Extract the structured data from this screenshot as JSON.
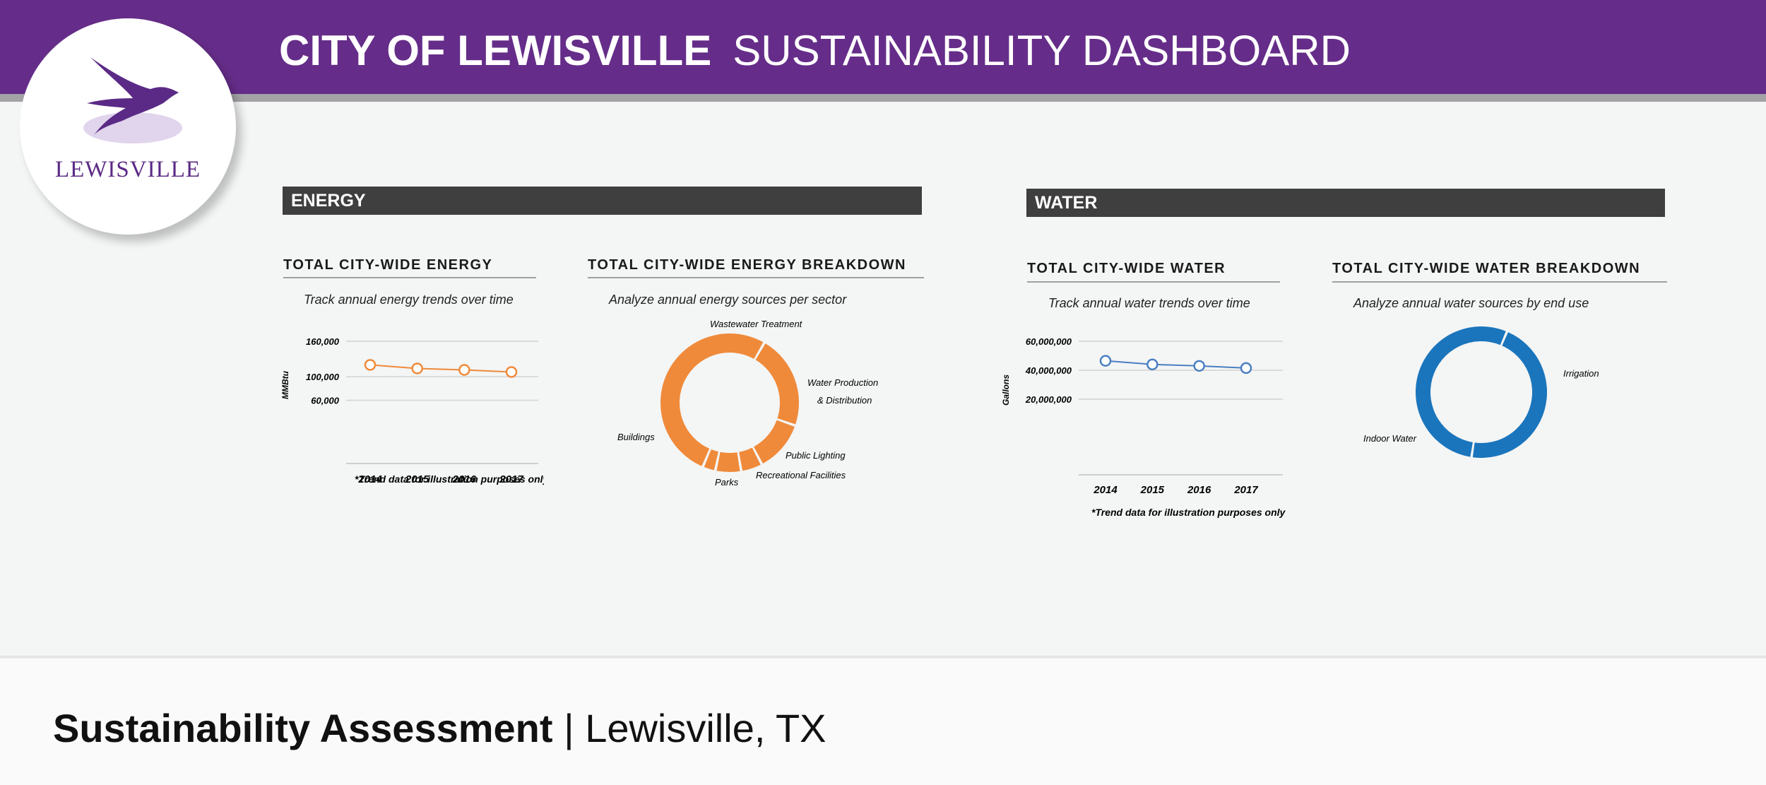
{
  "header": {
    "title_bold": "CITY OF LEWISVILLE",
    "title_light": "SUSTAINABILITY DASHBOARD",
    "logo_text": "LEWISVILLE",
    "colors": {
      "purple": "#652d89",
      "stripe": "#a3a3a5"
    }
  },
  "energy": {
    "section_label": "ENERGY",
    "trend": {
      "title": "TOTAL CITY-WIDE ENERGY",
      "subtitle": "Track annual energy trends over time",
      "note": "*Trend data for illustration purposes only"
    },
    "breakdown": {
      "title": "TOTAL CITY-WIDE ENERGY BREAKDOWN",
      "subtitle": "Analyze annual energy sources  per sector"
    }
  },
  "water": {
    "section_label": "WATER",
    "trend": {
      "title": "TOTAL CITY-WIDE WATER",
      "subtitle": "Track annual water trends over time",
      "note": "*Trend data for illustration purposes only"
    },
    "breakdown": {
      "title": "TOTAL CITY-WIDE WATER BREAKDOWN",
      "subtitle": "Analyze annual water sources  by end use"
    }
  },
  "footer": {
    "bold": "Sustainability Assessment",
    "rest": " | Lewisville, TX"
  },
  "chart_data": [
    {
      "type": "line",
      "ylabel": "MMBtu",
      "x": [
        "2014",
        "2015",
        "2016",
        "2017"
      ],
      "series": [
        {
          "values": [
            120000,
            114000,
            111500,
            108000
          ]
        }
      ],
      "yticks": [
        "160,000",
        "100,000",
        "60,000"
      ],
      "ylim": [
        20000,
        160000
      ],
      "color": "#ef8a3a"
    },
    {
      "type": "pie",
      "labels": [
        "Wastewater Treatment",
        "Water Production",
        "& Distribution",
        "Public Lighting",
        "Recreational Facilities",
        "Parks",
        "Buildings"
      ],
      "slices": [
        {
          "label": "Wastewater Treatment",
          "value": 22
        },
        {
          "label": "Water Production & Distribution",
          "value": 12
        },
        {
          "label": "Public Lighting",
          "value": 5
        },
        {
          "label": "Recreational Facilities",
          "value": 6
        },
        {
          "label": "Parks",
          "value": 3
        },
        {
          "label": "Buildings",
          "value": 52
        }
      ],
      "color": "#ef8a3a"
    },
    {
      "type": "line",
      "ylabel": "Gallons",
      "x": [
        "2014",
        "2015",
        "2016",
        "2017"
      ],
      "series": [
        {
          "values": [
            46500000,
            44000000,
            43000000,
            41500000
          ]
        }
      ],
      "yticks": [
        "60,000,000",
        "40,000,000",
        "20,000,000"
      ],
      "ylim": [
        0,
        60000000
      ],
      "color": "#4a7fc1"
    },
    {
      "type": "pie",
      "labels": [
        "Irrigation",
        "Indoor Water"
      ],
      "slices": [
        {
          "label": "Irrigation",
          "value": 46
        },
        {
          "label": "Indoor Water",
          "value": 54
        }
      ],
      "color": "#1a75bc"
    }
  ]
}
